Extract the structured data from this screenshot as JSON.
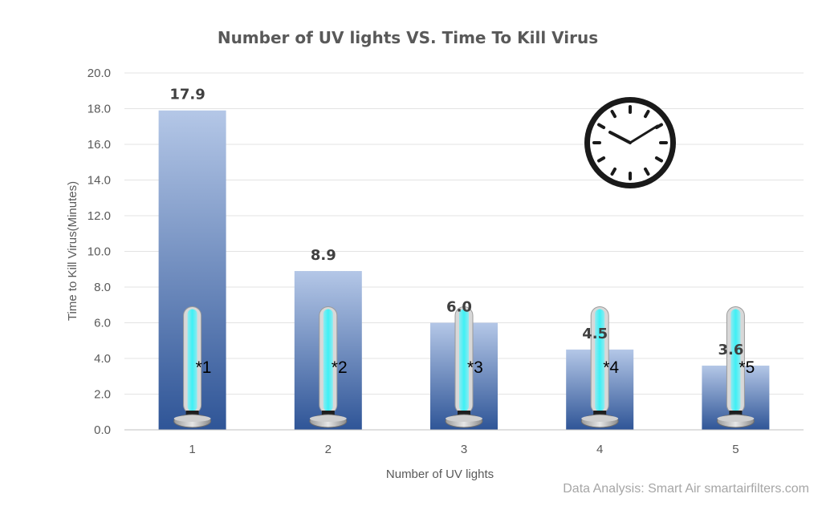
{
  "chart_data": {
    "type": "bar",
    "title": "Number of UV lights VS. Time To Kill Virus",
    "xlabel": "Number of UV lights",
    "ylabel": "Time to Kill Virus(Minutes)",
    "categories": [
      "1",
      "2",
      "3",
      "4",
      "5"
    ],
    "values": [
      17.9,
      8.9,
      6.0,
      4.5,
      3.6
    ],
    "data_labels": [
      "17.9",
      "8.9",
      "6.0",
      "4.5",
      "3.6"
    ],
    "markers": [
      "*1",
      "*2",
      "*3",
      "*4",
      "*5"
    ],
    "ylim": [
      0,
      20
    ],
    "yticks": [
      "0.0",
      "2.0",
      "4.0",
      "6.0",
      "8.0",
      "10.0",
      "12.0",
      "14.0",
      "16.0",
      "18.0",
      "20.0"
    ],
    "grid": true,
    "legend": "none",
    "bar_gradient": [
      "#b4c7e7",
      "#2f5597"
    ],
    "decorations": [
      "uv-lamp-image",
      "clock-icon"
    ]
  },
  "footer": {
    "credit": "Data Analysis: Smart Air smartairfilters.com"
  }
}
